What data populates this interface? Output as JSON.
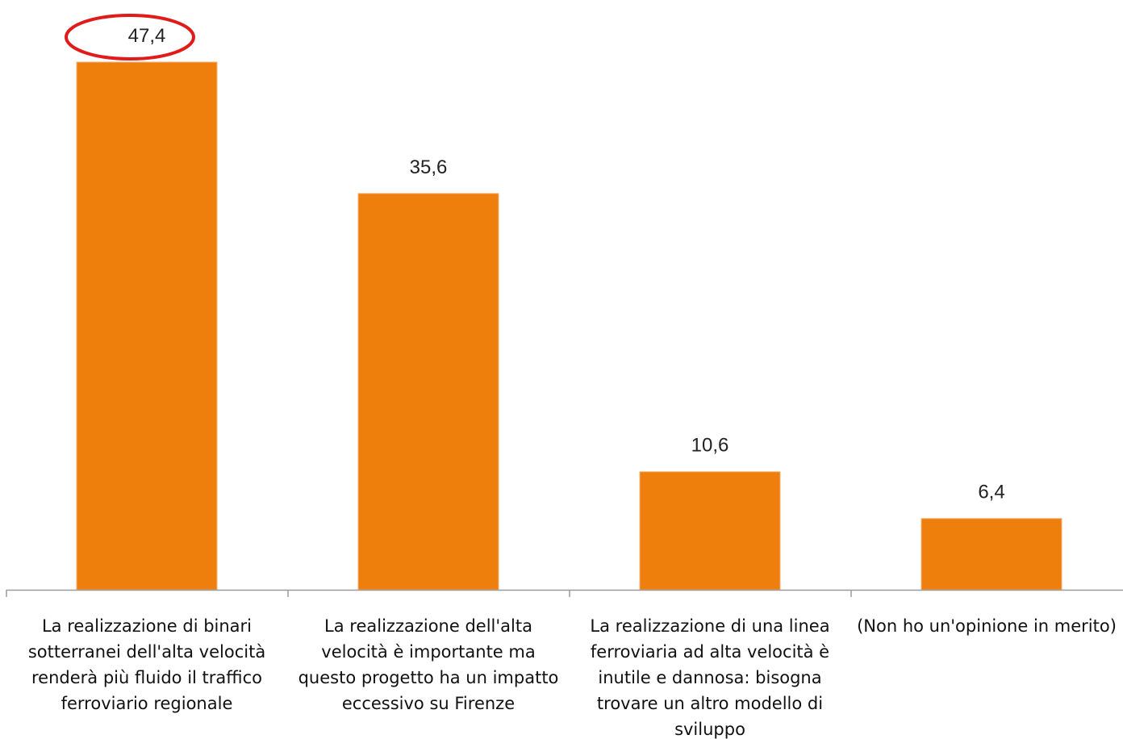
{
  "chart_data": {
    "type": "bar",
    "categories": [
      [
        "La realizzazione di binari",
        "sotterranei  dell'alta velocità",
        "renderà più fluido il traffico",
        "ferroviario regionale"
      ],
      [
        "La realizzazione dell'alta",
        "velocità è  importante ma",
        "questo progetto ha un impatto",
        "eccessivo su Firenze"
      ],
      [
        "La realizzazione di una linea",
        "ferroviaria ad alta velocità è",
        "inutile e dannosa: bisogna",
        "trovare un altro modello di",
        "sviluppo"
      ],
      [
        "(Non ho un'opinione in merito)"
      ]
    ],
    "values": [
      47.4,
      35.6,
      10.6,
      6.4
    ],
    "value_labels": [
      "47,4",
      "35,6",
      "10,6",
      "6,4"
    ],
    "ylim": [
      0,
      47.4
    ],
    "grid": false,
    "highlight_index": 0,
    "colors": {
      "bar": "#ef7f0c",
      "bar_edge": "#f4b27a",
      "axis": "#9a9a9a",
      "highlight": "#e01b1b"
    }
  }
}
